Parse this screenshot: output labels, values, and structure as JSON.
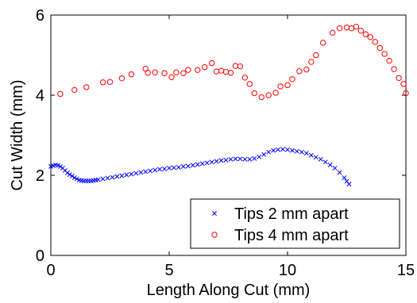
{
  "chart_data": {
    "type": "scatter",
    "xlabel": "Length Along Cut (mm)",
    "ylabel": "Cut Width (mm)",
    "xlim": [
      0,
      15
    ],
    "ylim": [
      0,
      6
    ],
    "xticks": [
      "0",
      "5",
      "10",
      "15"
    ],
    "yticks": [
      "0",
      "2",
      "4",
      "6"
    ],
    "grid": false,
    "legend": "bottom-right",
    "series": [
      {
        "name": "Tips 2 mm apart",
        "marker": "x",
        "color": "#0000ff",
        "x": [
          0.0,
          0.1,
          0.2,
          0.3,
          0.4,
          0.5,
          0.6,
          0.7,
          0.8,
          0.9,
          1.0,
          1.1,
          1.2,
          1.3,
          1.4,
          1.5,
          1.6,
          1.7,
          1.8,
          1.9,
          2.0,
          2.2,
          2.4,
          2.6,
          2.8,
          3.0,
          3.2,
          3.4,
          3.6,
          3.8,
          4.0,
          4.2,
          4.4,
          4.6,
          4.8,
          5.0,
          5.2,
          5.4,
          5.6,
          5.8,
          6.0,
          6.2,
          6.4,
          6.6,
          6.8,
          7.0,
          7.2,
          7.4,
          7.6,
          7.8,
          8.0,
          8.2,
          8.4,
          8.6,
          8.8,
          9.0,
          9.2,
          9.4,
          9.6,
          9.8,
          10.0,
          10.2,
          10.4,
          10.6,
          10.8,
          11.0,
          11.2,
          11.4,
          11.6,
          11.8,
          12.0,
          12.2,
          12.4,
          12.5,
          12.6
        ],
        "y": [
          2.22,
          2.24,
          2.26,
          2.25,
          2.22,
          2.18,
          2.12,
          2.06,
          2.02,
          1.98,
          1.94,
          1.91,
          1.88,
          1.87,
          1.86,
          1.86,
          1.86,
          1.86,
          1.87,
          1.88,
          1.89,
          1.91,
          1.93,
          1.95,
          1.97,
          1.99,
          2.01,
          2.03,
          2.05,
          2.07,
          2.09,
          2.11,
          2.13,
          2.15,
          2.16,
          2.18,
          2.19,
          2.2,
          2.22,
          2.23,
          2.25,
          2.27,
          2.29,
          2.31,
          2.33,
          2.35,
          2.37,
          2.38,
          2.4,
          2.41,
          2.41,
          2.4,
          2.4,
          2.42,
          2.46,
          2.52,
          2.58,
          2.62,
          2.64,
          2.65,
          2.64,
          2.62,
          2.6,
          2.58,
          2.55,
          2.5,
          2.45,
          2.4,
          2.33,
          2.26,
          2.18,
          2.07,
          1.94,
          1.85,
          1.78
        ]
      },
      {
        "name": "Tips 4 mm apart",
        "marker": "o",
        "color": "#ff0000",
        "x": [
          0.4,
          1.0,
          1.5,
          2.2,
          2.5,
          3.0,
          3.4,
          4.0,
          4.1,
          4.4,
          4.8,
          5.1,
          5.3,
          5.6,
          5.8,
          6.2,
          6.5,
          6.8,
          7.0,
          7.2,
          7.4,
          7.6,
          7.8,
          8.0,
          8.2,
          8.4,
          8.6,
          8.9,
          9.2,
          9.5,
          9.7,
          10.0,
          10.2,
          10.5,
          10.8,
          11.0,
          11.2,
          11.5,
          11.9,
          12.2,
          12.5,
          12.7,
          12.9,
          13.1,
          13.3,
          13.5,
          13.7,
          13.9,
          14.1,
          14.3,
          14.5,
          14.7,
          14.9,
          15.0
        ],
        "y": [
          4.03,
          4.13,
          4.2,
          4.32,
          4.33,
          4.42,
          4.52,
          4.66,
          4.56,
          4.57,
          4.55,
          4.45,
          4.57,
          4.55,
          4.63,
          4.63,
          4.7,
          4.8,
          4.59,
          4.61,
          4.58,
          4.56,
          4.73,
          4.72,
          4.44,
          4.28,
          4.05,
          3.95,
          4.0,
          4.06,
          4.22,
          4.25,
          4.4,
          4.6,
          4.64,
          4.83,
          5.0,
          5.31,
          5.56,
          5.67,
          5.69,
          5.67,
          5.71,
          5.61,
          5.52,
          5.45,
          5.33,
          5.18,
          5.03,
          4.86,
          4.65,
          4.43,
          4.28,
          4.05
        ]
      }
    ]
  }
}
